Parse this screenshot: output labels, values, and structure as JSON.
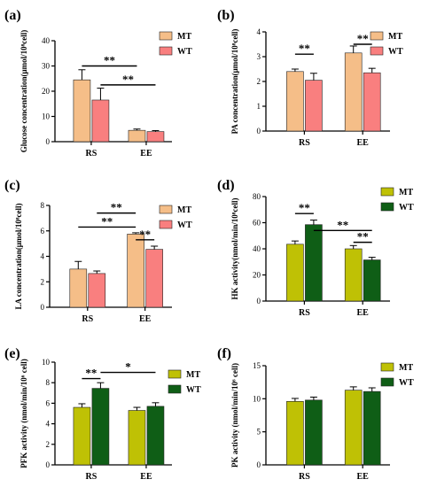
{
  "colors": {
    "mt_orange": "#F5BE88",
    "wt_red": "#F97F7F",
    "mt_olive": "#BFC105",
    "wt_green": "#0F5E16",
    "axis": "#000000"
  },
  "chart_data": [
    {
      "panel": "(a)",
      "type": "bar",
      "categories": [
        "RS",
        "EE"
      ],
      "ylabel": "Glucose concentration(μmol/10⁸cell)",
      "ylim": [
        0,
        40
      ],
      "yticks": [
        0,
        10,
        20,
        30,
        40
      ],
      "legend_position": "top-right",
      "grid": false,
      "series": [
        {
          "name": "MT",
          "color": "mt_orange",
          "values": [
            24.5,
            4.5
          ],
          "errors": [
            4.0,
            0.5
          ]
        },
        {
          "name": "WT",
          "color": "wt_red",
          "values": [
            16.5,
            4.0
          ],
          "errors": [
            4.7,
            0.4
          ]
        }
      ],
      "significance": [
        {
          "label": "**",
          "from": [
            0,
            0
          ],
          "to": [
            1,
            0
          ],
          "y": 30
        },
        {
          "label": "**",
          "from": [
            0,
            1
          ],
          "to": [
            1,
            1
          ],
          "y": 22.5
        }
      ]
    },
    {
      "panel": "(b)",
      "type": "bar",
      "categories": [
        "RS",
        "EE"
      ],
      "ylabel": "PA concentration(μmol/10⁸cell)",
      "ylim": [
        0,
        4
      ],
      "yticks": [
        0,
        1,
        2,
        3,
        4
      ],
      "legend_position": "top-right",
      "grid": false,
      "series": [
        {
          "name": "MT",
          "color": "mt_orange",
          "values": [
            2.4,
            3.15
          ],
          "errors": [
            0.1,
            0.28
          ]
        },
        {
          "name": "WT",
          "color": "wt_red",
          "values": [
            2.05,
            2.35
          ],
          "errors": [
            0.28,
            0.18
          ]
        }
      ],
      "significance": [
        {
          "label": "**",
          "from": [
            0,
            0
          ],
          "to": [
            0,
            1
          ],
          "y": 3.1
        },
        {
          "label": "**",
          "from": [
            1,
            0
          ],
          "to": [
            1,
            1
          ],
          "y": 3.5
        }
      ]
    },
    {
      "panel": "(c)",
      "type": "bar",
      "categories": [
        "RS",
        "EE"
      ],
      "ylabel": "LA concentration(μmol/10⁸cell)",
      "ylim": [
        0,
        8
      ],
      "yticks": [
        0,
        2,
        4,
        6,
        8
      ],
      "legend_position": "top-right",
      "grid": false,
      "series": [
        {
          "name": "MT",
          "color": "mt_orange",
          "values": [
            3.0,
            5.75
          ],
          "errors": [
            0.6,
            0.1
          ]
        },
        {
          "name": "WT",
          "color": "wt_red",
          "values": [
            2.65,
            4.55
          ],
          "errors": [
            0.2,
            0.25
          ]
        }
      ],
      "significance": [
        {
          "label": "**",
          "from": [
            0,
            0
          ],
          "to": [
            1,
            0
          ],
          "y": 6.3
        },
        {
          "label": "**",
          "from": [
            0,
            1
          ],
          "to": [
            1,
            0
          ],
          "y": 7.4
        },
        {
          "label": "**",
          "from": [
            1,
            0
          ],
          "to": [
            1,
            1
          ],
          "y": 5.3
        }
      ]
    },
    {
      "panel": "(d)",
      "type": "bar",
      "categories": [
        "RS",
        "EE"
      ],
      "ylabel": "HK activity(nmol/min/10⁸cell)",
      "ylim": [
        0,
        80
      ],
      "yticks": [
        0,
        20,
        40,
        60,
        80
      ],
      "legend_position": "top-right",
      "grid": false,
      "series": [
        {
          "name": "MT",
          "color": "mt_olive",
          "values": [
            43.5,
            40.0
          ],
          "errors": [
            2.5,
            2.5
          ]
        },
        {
          "name": "WT",
          "color": "wt_green",
          "values": [
            58.5,
            31.5
          ],
          "errors": [
            3.5,
            2.0
          ]
        }
      ],
      "significance": [
        {
          "label": "**",
          "from": [
            0,
            0
          ],
          "to": [
            0,
            1
          ],
          "y": 67
        },
        {
          "label": "**",
          "from": [
            0,
            1
          ],
          "to": [
            1,
            1
          ],
          "y": 54
        },
        {
          "label": "**",
          "from": [
            1,
            0
          ],
          "to": [
            1,
            1
          ],
          "y": 45
        }
      ]
    },
    {
      "panel": "(e)",
      "type": "bar",
      "categories": [
        "RS",
        "EE"
      ],
      "ylabel": "PFK activity (nmol/min/10⁶ cell)",
      "ylim": [
        0,
        10
      ],
      "yticks": [
        0,
        2,
        4,
        6,
        8,
        10
      ],
      "legend_position": "top-right",
      "grid": false,
      "series": [
        {
          "name": "MT",
          "color": "mt_olive",
          "values": [
            5.6,
            5.3
          ],
          "errors": [
            0.35,
            0.3
          ]
        },
        {
          "name": "WT",
          "color": "wt_green",
          "values": [
            7.45,
            5.7
          ],
          "errors": [
            0.55,
            0.35
          ]
        }
      ],
      "significance": [
        {
          "label": "**",
          "from": [
            0,
            0
          ],
          "to": [
            0,
            1
          ],
          "y": 8.4
        },
        {
          "label": "*",
          "from": [
            0,
            1
          ],
          "to": [
            1,
            1
          ],
          "y": 9.0
        }
      ]
    },
    {
      "panel": "(f)",
      "type": "bar",
      "categories": [
        "RS",
        "EE"
      ],
      "ylabel": "PK activity (nmol/min/10⁶ cell)",
      "ylim": [
        0,
        15
      ],
      "yticks": [
        0,
        5,
        10,
        15
      ],
      "legend_position": "top-right",
      "grid": false,
      "series": [
        {
          "name": "MT",
          "color": "mt_olive",
          "values": [
            9.6,
            11.3
          ],
          "errors": [
            0.45,
            0.5
          ]
        },
        {
          "name": "WT",
          "color": "wt_green",
          "values": [
            9.8,
            11.1
          ],
          "errors": [
            0.45,
            0.55
          ]
        }
      ],
      "significance": []
    }
  ]
}
